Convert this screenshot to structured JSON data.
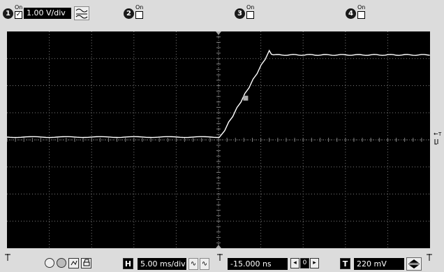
{
  "channels": [
    {
      "number": "1",
      "on_label": "On",
      "checked_mark": "✓",
      "scale": "1.00 V/div",
      "coupling_icon": "ac-dc-coupling-icon"
    },
    {
      "number": "2",
      "on_label": "On",
      "checked_mark": ""
    },
    {
      "number": "3",
      "on_label": "On",
      "checked_mark": ""
    },
    {
      "number": "4",
      "on_label": "On",
      "checked_mark": ""
    }
  ],
  "bottom": {
    "horizontal_letter": "H",
    "timebase": "5.00 ms/div",
    "delay": "-15.000 ns",
    "delay_ref_label": "0",
    "trigger_letter": "T",
    "trigger_level": "220 mV"
  },
  "trace": {
    "baseline_fraction": 0.487,
    "high_fraction": 0.092,
    "rise_start_div": 6.05,
    "rise_end_div": 7.2
  },
  "colors": {
    "screen_bg": "#000000",
    "grid": "#7a7a7a",
    "trace": "#ffffff",
    "marker": "#aaaaaa"
  }
}
